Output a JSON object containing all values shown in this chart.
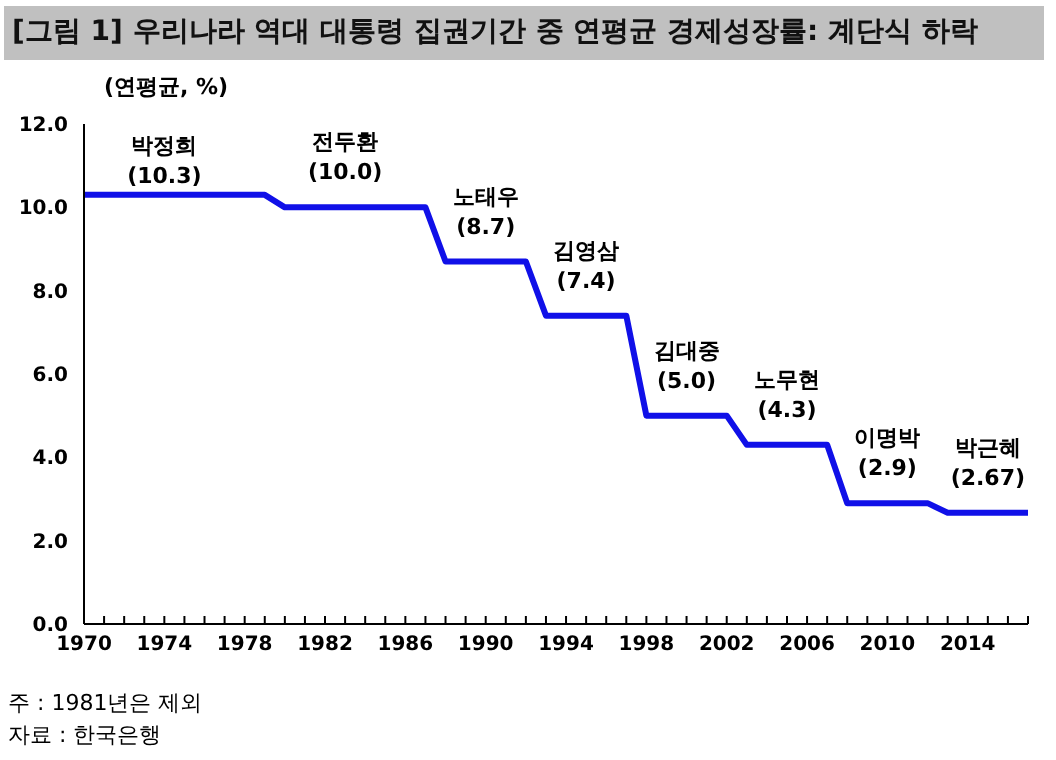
{
  "chart_data": {
    "type": "line",
    "title": "[그림 1] 우리나라 역대 대통령 집권기간 중 연평균 경제성장률: 계단식 하락",
    "ylabel": "(연평균, %)",
    "x": [
      1970,
      1971,
      1972,
      1973,
      1974,
      1975,
      1976,
      1977,
      1978,
      1979,
      1980,
      1981,
      1982,
      1983,
      1984,
      1985,
      1986,
      1987,
      1988,
      1989,
      1990,
      1991,
      1992,
      1993,
      1994,
      1995,
      1996,
      1997,
      1998,
      1999,
      2000,
      2001,
      2002,
      2003,
      2004,
      2005,
      2006,
      2007,
      2008,
      2009,
      2010,
      2011,
      2012,
      2013,
      2014,
      2015,
      2016,
      2017
    ],
    "series": [
      {
        "color": "#1010e8",
        "values": [
          10.3,
          10.3,
          10.3,
          10.3,
          10.3,
          10.3,
          10.3,
          10.3,
          10.3,
          10.3,
          10.0,
          10.0,
          10.0,
          10.0,
          10.0,
          10.0,
          10.0,
          10.0,
          8.7,
          8.7,
          8.7,
          8.7,
          8.7,
          7.4,
          7.4,
          7.4,
          7.4,
          7.4,
          5.0,
          5.0,
          5.0,
          5.0,
          5.0,
          4.3,
          4.3,
          4.3,
          4.3,
          4.3,
          2.9,
          2.9,
          2.9,
          2.9,
          2.9,
          2.67,
          2.67,
          2.67,
          2.67,
          2.67
        ]
      }
    ],
    "marker": "none",
    "xlim": [
      1970,
      2017
    ],
    "xticks": [
      1970,
      {
        "value": 1971,
        "label": null
      },
      {
        "value": 1972,
        "label": null
      },
      {
        "value": 1973,
        "label": null
      },
      1974,
      {
        "value": 1975,
        "label": null
      },
      {
        "value": 1976,
        "label": null
      },
      {
        "value": 1977,
        "label": null
      },
      1978,
      {
        "value": 1979,
        "label": null
      },
      {
        "value": 1980,
        "label": null
      },
      {
        "value": 1981,
        "label": null
      },
      1982,
      {
        "value": 1983,
        "label": null
      },
      {
        "value": 1984,
        "label": null
      },
      {
        "value": 1985,
        "label": null
      },
      1986,
      {
        "value": 1987,
        "label": null
      },
      {
        "value": 1988,
        "label": null
      },
      {
        "value": 1989,
        "label": null
      },
      1990,
      {
        "value": 1991,
        "label": null
      },
      {
        "value": 1992,
        "label": null
      },
      {
        "value": 1993,
        "label": null
      },
      1994,
      {
        "value": 1995,
        "label": null
      },
      {
        "value": 1996,
        "label": null
      },
      {
        "value": 1997,
        "label": null
      },
      1998,
      {
        "value": 1999,
        "label": null
      },
      {
        "value": 2000,
        "label": null
      },
      {
        "value": 2001,
        "label": null
      },
      2002,
      {
        "value": 2003,
        "label": null
      },
      {
        "value": 2004,
        "label": null
      },
      {
        "value": 2005,
        "label": null
      },
      2006,
      {
        "value": 2007,
        "label": null
      },
      {
        "value": 2008,
        "label": null
      },
      {
        "value": 2009,
        "label": null
      },
      2010,
      {
        "value": 2011,
        "label": null
      },
      {
        "value": 2012,
        "label": null
      },
      {
        "value": 2013,
        "label": null
      },
      2014,
      {
        "value": 2015,
        "label": null
      },
      {
        "value": 2016,
        "label": null
      },
      {
        "value": 2017,
        "label": null
      }
    ],
    "ylim": [
      0,
      12
    ],
    "yticks": [
      {
        "value": 0,
        "label": "0.0"
      },
      {
        "value": 2,
        "label": "2.0"
      },
      {
        "value": 4,
        "label": "4.0"
      },
      {
        "value": 6,
        "label": "6.0"
      },
      {
        "value": 8,
        "label": "8.0"
      },
      {
        "value": 10,
        "label": "10.0"
      },
      {
        "value": 12,
        "label": "12.0"
      }
    ],
    "annotations": [
      {
        "text": "박정희\n(10.3)",
        "x": 1974,
        "y": 10.3
      },
      {
        "text": "전두환\n(10.0)",
        "x": 1983,
        "y": 10.0
      },
      {
        "text": "노태우\n(8.7)",
        "x": 1990,
        "y": 8.7
      },
      {
        "text": "김영삼\n(7.4)",
        "x": 1995,
        "y": 7.4
      },
      {
        "text": "김대중\n(5.0)",
        "x": 2000,
        "y": 5.0
      },
      {
        "text": "노무현\n(4.3)",
        "x": 2005,
        "y": 4.3
      },
      {
        "text": "이명박\n(2.9)",
        "x": 2010,
        "y": 2.9
      },
      {
        "text": "박근혜\n(2.67)",
        "x": 2015,
        "y": 2.67
      },
      "주 : 1981년은 제외",
      "자료 : 한국은행"
    ]
  }
}
